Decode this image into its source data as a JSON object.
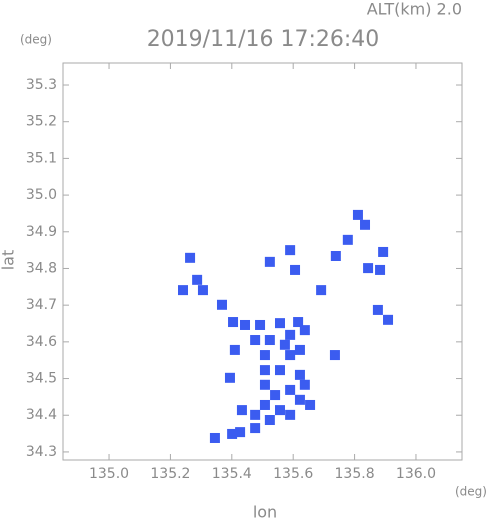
{
  "chart_data": {
    "type": "scatter",
    "title": "2019/11/16 17:26:40",
    "subtitle": "ALT(km) 2.0",
    "y_unit": "(deg)",
    "x_unit": "(deg)",
    "xlabel": "lon",
    "ylabel": "lat",
    "color": "#3b5cf0",
    "x": [
      135.811,
      135.834,
      135.778,
      135.893,
      135.883,
      135.844,
      135.739,
      135.691,
      135.909,
      135.876,
      135.287,
      135.264,
      135.241,
      135.306,
      135.368,
      135.404,
      135.443,
      135.492,
      135.557,
      135.616,
      135.524,
      135.59,
      135.638,
      135.508,
      135.59,
      135.41,
      135.508,
      135.557,
      135.622,
      135.394,
      135.508,
      135.541,
      135.59,
      135.638,
      135.622,
      135.655,
      135.508,
      135.557,
      135.476,
      135.524,
      135.476,
      135.427,
      135.401,
      135.345,
      135.59,
      135.573,
      135.622,
      135.476,
      135.606,
      135.524,
      135.59,
      135.433,
      135.736
    ],
    "values": [
      34.946,
      34.919,
      34.878,
      34.845,
      34.796,
      34.801,
      34.834,
      34.741,
      34.66,
      34.687,
      34.769,
      34.829,
      34.741,
      34.741,
      34.701,
      34.654,
      34.646,
      34.646,
      34.651,
      34.654,
      34.605,
      34.619,
      34.632,
      34.564,
      34.564,
      34.578,
      34.523,
      34.523,
      34.51,
      34.502,
      34.483,
      34.455,
      34.469,
      34.483,
      34.442,
      34.428,
      34.428,
      34.414,
      34.401,
      34.387,
      34.365,
      34.354,
      34.349,
      34.338,
      34.401,
      34.592,
      34.578,
      34.605,
      34.796,
      34.818,
      34.85,
      34.414,
      34.564
    ],
    "xlim": [
      134.85,
      136.15
    ],
    "ylim": [
      34.278,
      35.36
    ],
    "xticks": [
      {
        "value": 135,
        "label": "135.0"
      },
      135.2,
      135.4,
      135.6,
      135.8,
      {
        "value": 136,
        "label": "136.0"
      }
    ],
    "yticks": [
      34.3,
      34.4,
      34.5,
      34.6,
      34.7,
      34.8,
      34.9,
      {
        "value": 35,
        "label": "35.0"
      },
      35.1,
      35.2,
      35.3
    ],
    "grid": false
  }
}
